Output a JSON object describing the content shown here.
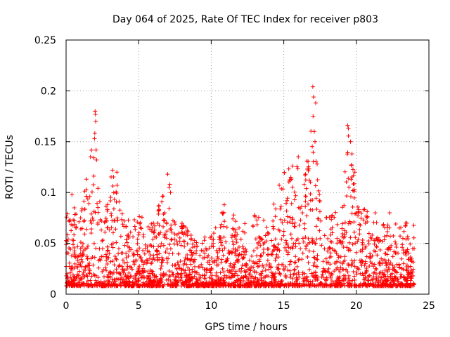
{
  "chart_data": {
    "type": "scatter",
    "title": "Day 064 of 2025, Rate Of TEC Index for receiver p803",
    "xlabel": "GPS time / hours",
    "ylabel": "ROTI / TECUs",
    "xlim": [
      0,
      25
    ],
    "ylim": [
      0,
      0.25
    ],
    "xticks": [
      0,
      5,
      10,
      15,
      20,
      25
    ],
    "xtick_labels": [
      "0",
      "5",
      "10",
      "15",
      "20",
      "25"
    ],
    "yticks": [
      0,
      0.05,
      0.1,
      0.15,
      0.2,
      0.25
    ],
    "ytick_labels": [
      "0",
      "0.05",
      "0.1",
      "0.15",
      "0.2",
      "0.25"
    ],
    "grid": true,
    "marker": "+",
    "series": [
      {
        "name": "ROTI",
        "color": "#ff0000",
        "data_range_hours": [
          0,
          24
        ],
        "typical_floor": 0.008,
        "envelope": [
          [
            0.0,
            0.08
          ],
          [
            0.5,
            0.09
          ],
          [
            1.0,
            0.075
          ],
          [
            2.0,
            0.18
          ],
          [
            2.5,
            0.07
          ],
          [
            3.0,
            0.12
          ],
          [
            3.5,
            0.12
          ],
          [
            4.0,
            0.07
          ],
          [
            5.0,
            0.08
          ],
          [
            6.0,
            0.07
          ],
          [
            7.0,
            0.12
          ],
          [
            7.5,
            0.08
          ],
          [
            8.0,
            0.07
          ],
          [
            9.0,
            0.055
          ],
          [
            10.0,
            0.06
          ],
          [
            11.0,
            0.088
          ],
          [
            12.0,
            0.07
          ],
          [
            13.0,
            0.08
          ],
          [
            14.0,
            0.07
          ],
          [
            15.0,
            0.13
          ],
          [
            16.0,
            0.13
          ],
          [
            16.5,
            0.12
          ],
          [
            17.0,
            0.204
          ],
          [
            17.5,
            0.09
          ],
          [
            18.0,
            0.08
          ],
          [
            19.0,
            0.09
          ],
          [
            19.5,
            0.165
          ],
          [
            20.0,
            0.09
          ],
          [
            21.0,
            0.08
          ],
          [
            22.0,
            0.07
          ],
          [
            23.0,
            0.07
          ],
          [
            24.0,
            0.07
          ]
        ],
        "highlights": [
          {
            "x": 2.0,
            "y": 0.18
          },
          {
            "x": 2.02,
            "y": 0.177
          },
          {
            "x": 2.04,
            "y": 0.17
          },
          {
            "x": 2.1,
            "y": 0.132
          },
          {
            "x": 3.2,
            "y": 0.122
          },
          {
            "x": 3.5,
            "y": 0.12
          },
          {
            "x": 7.0,
            "y": 0.118
          },
          {
            "x": 7.1,
            "y": 0.105
          },
          {
            "x": 10.9,
            "y": 0.088
          },
          {
            "x": 15.6,
            "y": 0.126
          },
          {
            "x": 16.0,
            "y": 0.135
          },
          {
            "x": 16.5,
            "y": 0.118
          },
          {
            "x": 17.0,
            "y": 0.204
          },
          {
            "x": 17.05,
            "y": 0.194
          },
          {
            "x": 17.2,
            "y": 0.188
          },
          {
            "x": 17.1,
            "y": 0.16
          },
          {
            "x": 17.15,
            "y": 0.15
          },
          {
            "x": 17.3,
            "y": 0.128
          },
          {
            "x": 19.4,
            "y": 0.166
          },
          {
            "x": 19.45,
            "y": 0.163
          },
          {
            "x": 19.6,
            "y": 0.15
          },
          {
            "x": 19.7,
            "y": 0.138
          },
          {
            "x": 19.9,
            "y": 0.12
          },
          {
            "x": 0.4,
            "y": 0.098
          },
          {
            "x": 1.0,
            "y": 0.075
          },
          {
            "x": 4.0,
            "y": 0.072
          },
          {
            "x": 21.3,
            "y": 0.08
          },
          {
            "x": 22.3,
            "y": 0.08
          },
          {
            "x": 23.4,
            "y": 0.07
          }
        ]
      }
    ]
  }
}
